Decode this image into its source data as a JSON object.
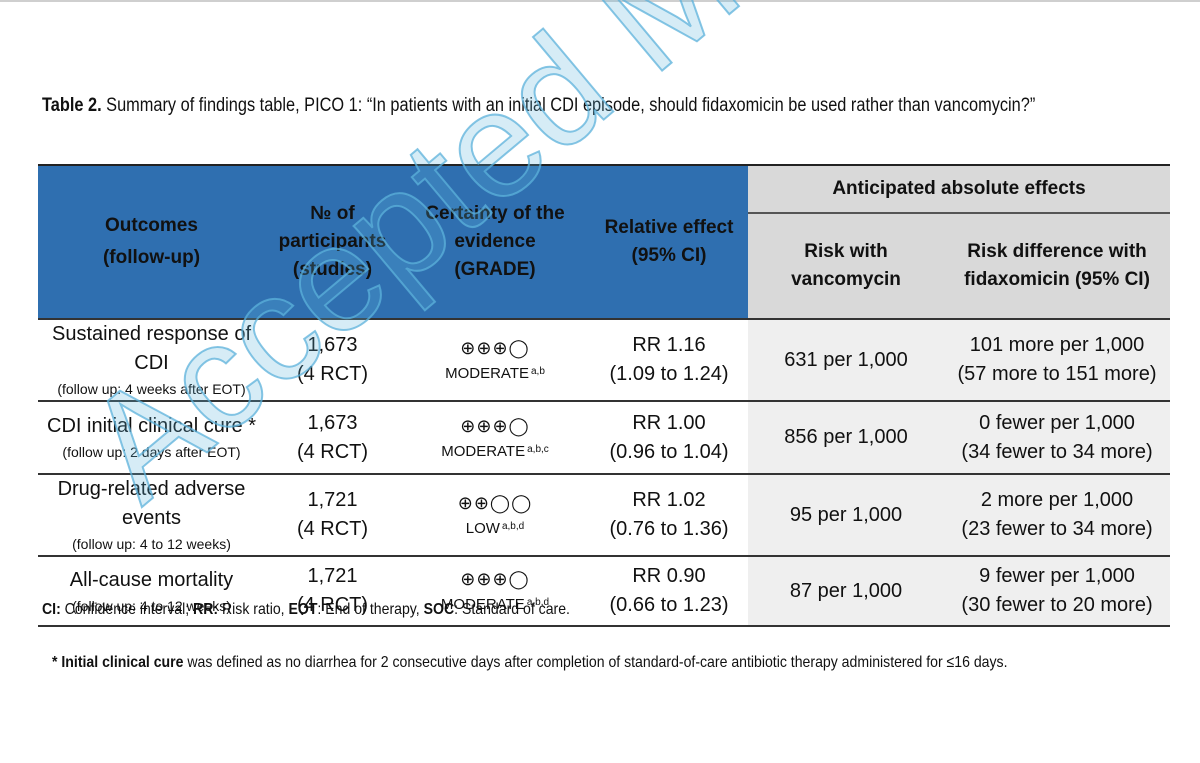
{
  "caption": {
    "label": "Table 2.",
    "text": "Summary of findings table, PICO 1: “In patients with an initial CDI episode, should fidaxomicin be used rather than vancomycin?”"
  },
  "table": {
    "headers": {
      "outcomes": [
        "Outcomes",
        "(follow-up)"
      ],
      "participants": [
        "№ of",
        "participants",
        "(studies)"
      ],
      "certainty": [
        "Certainty of the",
        "evidence",
        "(GRADE)"
      ],
      "relative": [
        "Relative effect",
        "(95% CI)"
      ],
      "anticipated": "Anticipated absolute effects",
      "risk_with": [
        "Risk with",
        "vancomycin"
      ],
      "risk_diff": [
        "Risk difference",
        "with fidaxomicin",
        "(95% CI)"
      ]
    },
    "rows": [
      {
        "outcome": "Sustained response of CDI",
        "followup": "(follow up: 4 weeks after EOT)",
        "participants": "1,673",
        "studies": "(4 RCT)",
        "grade_symbols": "⊕⊕⊕◯",
        "grade_label": "MODERATE",
        "grade_sup": "a,b",
        "rr": "RR 1.16",
        "rr_ci": "(1.09 to 1.24)",
        "risk_with": "631 per 1,000",
        "risk_diff": "101 more per 1,000",
        "risk_diff_ci": "(57 more to 151 more)"
      },
      {
        "outcome": "CDI initial clinical cure *",
        "followup": "(follow up: 2 days after EOT)",
        "participants": "1,673",
        "studies": "(4 RCT)",
        "grade_symbols": "⊕⊕⊕◯",
        "grade_label": "MODERATE",
        "grade_sup": "a,b,c",
        "rr": "RR 1.00",
        "rr_ci": "(0.96 to 1.04)",
        "risk_with": "856 per 1,000",
        "risk_diff": "0 fewer per 1,000",
        "risk_diff_ci": "(34 fewer to 34 more)"
      },
      {
        "outcome": "Drug-related adverse events",
        "followup": "(follow up: 4 to 12 weeks)",
        "participants": "1,721",
        "studies": "(4 RCT)",
        "grade_symbols": "⊕⊕◯◯",
        "grade_label": "LOW",
        "grade_sup": "a,b,d",
        "rr": "RR 1.02",
        "rr_ci": "(0.76 to 1.36)",
        "risk_with": "95 per 1,000",
        "risk_diff": "2 more per 1,000",
        "risk_diff_ci": "(23 fewer to 34 more)"
      },
      {
        "outcome": "All-cause mortality",
        "followup": "(follow up: 4 to 12 weeks)",
        "participants": "1,721",
        "studies": "(4 RCT)",
        "grade_symbols": "⊕⊕⊕◯",
        "grade_label": "MODERATE",
        "grade_sup": "a,b,d",
        "rr": "RR 0.90",
        "rr_ci": "(0.66 to 1.23)",
        "risk_with": "87 per 1,000",
        "risk_diff": "9 fewer per 1,000",
        "risk_diff_ci": "(30 fewer to 20 more)"
      }
    ]
  },
  "abbreviations": [
    {
      "term": "CI:",
      "def": " Confidence interval; "
    },
    {
      "term": "RR:",
      "def": " Risk ratio, "
    },
    {
      "term": "EOT",
      "def": ": End of therapy, "
    },
    {
      "term": "SOC",
      "def": ": Standard of care."
    }
  ],
  "footnote": {
    "prefix": "* ",
    "term": "Initial clinical cure",
    "text": " was defined as no diarrhea for 2 consecutive days after completion of standard-of-care antibiotic therapy administered for ≤16 days."
  },
  "watermark": "Accepted Manuscript",
  "colors": {
    "header_blue": "#2f6fb0",
    "header_gray": "#d9d9d9",
    "watermark": "#5cb2db"
  }
}
